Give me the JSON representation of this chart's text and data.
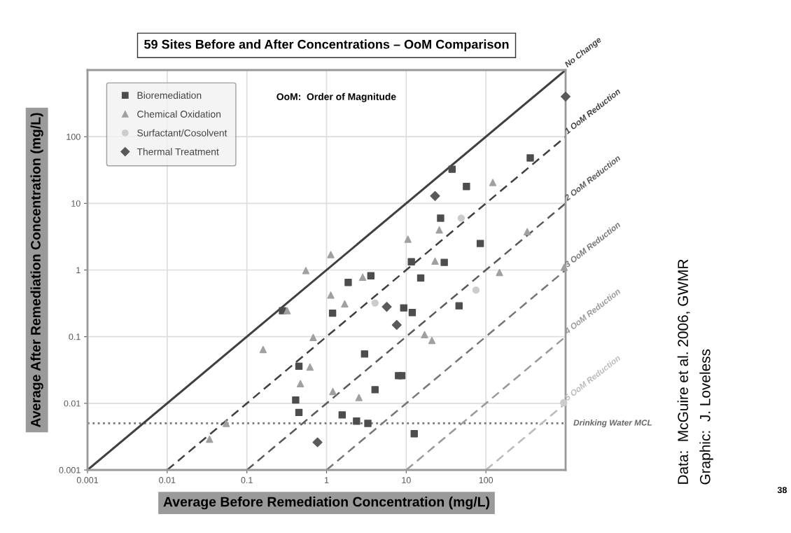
{
  "chart_data": {
    "type": "scatter",
    "title": "59 Sites Before and After Concentrations – OoM Comparison",
    "xlabel": "Average Before Remediation Concentration (mg/L)",
    "ylabel": "Average After Remediation Concentration (mg/L)",
    "log": "xy",
    "grid": true,
    "legend": "top left",
    "xlim": [
      0.001,
      1000
    ],
    "ylim": [
      0.001,
      1000
    ],
    "xticks": [
      0.001,
      0.01,
      0.1,
      1,
      10,
      100
    ],
    "yticks": [
      0.001,
      0.01,
      0.1,
      1,
      10,
      100
    ],
    "series": [
      {
        "name": "No Change",
        "type": "line",
        "color": "#404040",
        "line_style": "solid",
        "marker": "none",
        "x": [
          0.001,
          1000
        ],
        "values": [
          0.001,
          1000
        ]
      },
      {
        "name": "1 OoM Reduction",
        "type": "line",
        "color": "#404040",
        "line_style": "dashed",
        "marker": "none",
        "x": [
          0.01,
          1000
        ],
        "values": [
          0.001,
          100
        ]
      },
      {
        "name": "2 OoM Reduction",
        "type": "line",
        "color": "#5a5a5a",
        "line_style": "dashed",
        "marker": "none",
        "x": [
          0.1,
          1000
        ],
        "values": [
          0.001,
          10
        ]
      },
      {
        "name": "3 OoM Reduction",
        "type": "line",
        "color": "#777777",
        "line_style": "dashed",
        "marker": "none",
        "x": [
          1,
          1000
        ],
        "values": [
          0.001,
          1
        ]
      },
      {
        "name": "4 OoM Reduction",
        "type": "line",
        "color": "#999999",
        "line_style": "dashed",
        "marker": "none",
        "x": [
          10,
          1000
        ],
        "values": [
          0.001,
          0.1
        ]
      },
      {
        "name": "5 OoM Reduction",
        "type": "line",
        "color": "#bbbbbb",
        "line_style": "dashed",
        "marker": "none",
        "x": [
          100,
          1000
        ],
        "values": [
          0.001,
          0.01
        ]
      },
      {
        "name": "Bioremediation",
        "color": "#4d4d4d",
        "marker": "square",
        "x": [
          360,
          37.6,
          57,
          27,
          85,
          11.6,
          30,
          3.6,
          1.87,
          15.2,
          1.19,
          9.3,
          11.9,
          46,
          3.0,
          8.0,
          8.8,
          4.06,
          0.45,
          0.41,
          0.45,
          1.57,
          2.38,
          3.3,
          12.6,
          0.28
        ],
        "values": [
          48,
          32.5,
          17.9,
          6.0,
          2.5,
          1.33,
          1.3,
          0.82,
          0.65,
          0.76,
          0.225,
          0.27,
          0.23,
          0.29,
          0.055,
          0.026,
          0.026,
          0.016,
          0.036,
          0.0112,
          0.0073,
          0.0067,
          0.0054,
          0.005,
          0.0035,
          0.245
        ]
      },
      {
        "name": "Chemical Oxidation",
        "color": "#a0a0a0",
        "marker": "triangle",
        "x": [
          122,
          330,
          960,
          148,
          26,
          10.5,
          23,
          1.13,
          0.55,
          2.84,
          1.13,
          1.69,
          17,
          21,
          0.68,
          0.62,
          0.47,
          1.2,
          2.55,
          0.32,
          0.16,
          0.055,
          0.034
        ],
        "values": [
          20.6,
          3.76,
          1.1,
          0.92,
          4.0,
          2.9,
          1.36,
          1.7,
          0.98,
          0.78,
          0.42,
          0.31,
          0.107,
          0.088,
          0.097,
          0.035,
          0.0197,
          0.015,
          0.0122,
          0.245,
          0.064,
          0.005,
          0.0029
        ]
      },
      {
        "name": "Surfactant/Cosolvent",
        "color": "#cccccc",
        "marker": "circle",
        "x": [
          49,
          75,
          4.06,
          945
        ],
        "values": [
          6.0,
          0.5,
          0.32,
          0.0102
        ]
      },
      {
        "name": "Thermal Treatment",
        "color": "#5a5a5a",
        "marker": "diamond",
        "x": [
          1000,
          23,
          5.7,
          7.6,
          0.77
        ],
        "values": [
          400,
          12.9,
          0.28,
          0.15,
          0.0026
        ]
      }
    ],
    "ref_lines": [
      {
        "axis": "y",
        "value": 0.005,
        "label": "Drinking Water MCL",
        "color": "#777777",
        "line_style": "dotted"
      }
    ],
    "annotations": [
      "OoM:  Order of Magnitude",
      "Data:  McGuire et al. 2006, GWMR",
      "Graphic:  J. Loveless",
      "38"
    ]
  }
}
